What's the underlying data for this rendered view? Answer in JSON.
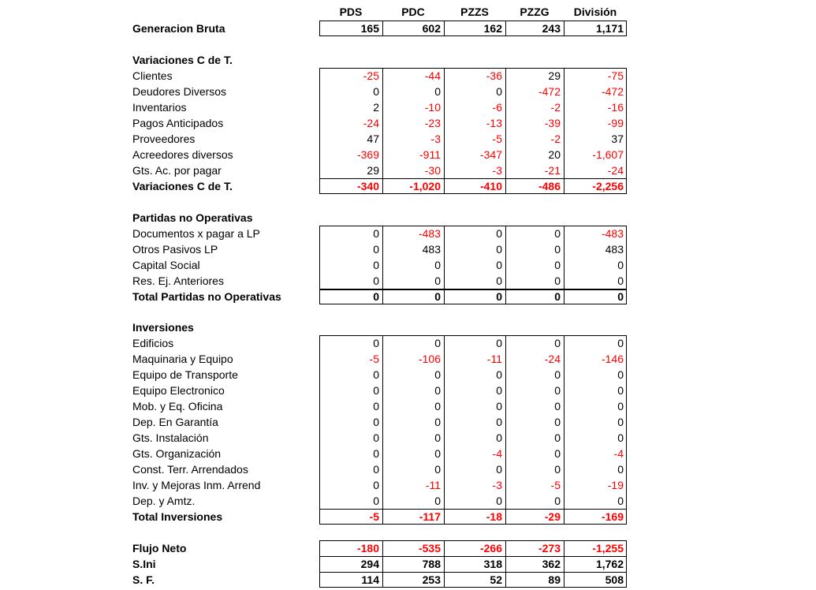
{
  "columns": [
    "PDS",
    "PDC",
    "PZZS",
    "PZZG",
    "División"
  ],
  "generacion": {
    "label": "Generacion Bruta",
    "values": [
      "165",
      "602",
      "162",
      "243",
      "1,171"
    ]
  },
  "variaciones": {
    "title": "Variaciones C de T.",
    "rows": [
      {
        "label": "Clientes",
        "values": [
          "-25",
          "-44",
          "-36",
          "29",
          "-75"
        ]
      },
      {
        "label": "Deudores Diversos",
        "values": [
          "0",
          "0",
          "0",
          "-472",
          "-472"
        ]
      },
      {
        "label": "Inventarios",
        "values": [
          "2",
          "-10",
          "-6",
          "-2",
          "-16"
        ]
      },
      {
        "label": "Pagos Anticipados",
        "values": [
          "-24",
          "-23",
          "-13",
          "-39",
          "-99"
        ]
      },
      {
        "label": "Proveedores",
        "values": [
          "47",
          "-3",
          "-5",
          "-2",
          "37"
        ]
      },
      {
        "label": "Acreedores diversos",
        "values": [
          "-369",
          "-911",
          "-347",
          "20",
          "-1,607"
        ]
      },
      {
        "label": "Gts. Ac. por pagar",
        "values": [
          "29",
          "-30",
          "-3",
          "-21",
          "-24"
        ]
      }
    ],
    "total": {
      "label": "Variaciones C de T.",
      "values": [
        "-340",
        "-1,020",
        "-410",
        "-486",
        "-2,256"
      ]
    }
  },
  "partidas": {
    "title": "Partidas no Operativas",
    "rows": [
      {
        "label": "Documentos x pagar a LP",
        "values": [
          "0",
          "-483",
          "0",
          "0",
          "-483"
        ]
      },
      {
        "label": "Otros Pasivos LP",
        "values": [
          "0",
          "483",
          "0",
          "0",
          "483"
        ]
      },
      {
        "label": "Capital Social",
        "values": [
          "0",
          "0",
          "0",
          "0",
          "0"
        ]
      },
      {
        "label": "Res. Ej. Anteriores",
        "values": [
          "0",
          "0",
          "0",
          "0",
          "0"
        ]
      }
    ],
    "total": {
      "label": "Total Partidas no Operativas",
      "values": [
        "0",
        "0",
        "0",
        "0",
        "0"
      ]
    }
  },
  "inversiones": {
    "title": "Inversiones",
    "rows": [
      {
        "label": "Edificios",
        "values": [
          "0",
          "0",
          "0",
          "0",
          "0"
        ]
      },
      {
        "label": "Maquinaria y Equipo",
        "values": [
          "-5",
          "-106",
          "-11",
          "-24",
          "-146"
        ]
      },
      {
        "label": "Equipo de Transporte",
        "values": [
          "0",
          "0",
          "0",
          "0",
          "0"
        ]
      },
      {
        "label": "Equipo Electronico",
        "values": [
          "0",
          "0",
          "0",
          "0",
          "0"
        ]
      },
      {
        "label": "Mob. y Eq. Oficina",
        "values": [
          "0",
          "0",
          "0",
          "0",
          "0"
        ]
      },
      {
        "label": "Dep. En Garantía",
        "values": [
          "0",
          "0",
          "0",
          "0",
          "0"
        ]
      },
      {
        "label": "Gts. Instalación",
        "values": [
          "0",
          "0",
          "0",
          "0",
          "0"
        ]
      },
      {
        "label": "Gts. Organización",
        "values": [
          "0",
          "0",
          "-4",
          "0",
          "-4"
        ]
      },
      {
        "label": "Const. Terr. Arrendados",
        "values": [
          "0",
          "0",
          "0",
          "0",
          "0"
        ]
      },
      {
        "label": "Inv. y Mejoras Inm. Arrend",
        "values": [
          "0",
          "-11",
          "-3",
          "-5",
          "-19"
        ]
      },
      {
        "label": "Dep. y Amtz.",
        "values": [
          "0",
          "0",
          "0",
          "0",
          "0"
        ]
      }
    ],
    "total": {
      "label": "Total Inversiones",
      "values": [
        "-5",
        "-117",
        "-18",
        "-29",
        "-169"
      ]
    }
  },
  "flujo": {
    "label": "Flujo Neto",
    "values": [
      "-180",
      "-535",
      "-266",
      "-273",
      "-1,255"
    ]
  },
  "sini": {
    "label": "S.Ini",
    "values": [
      "294",
      "788",
      "318",
      "362",
      "1,762"
    ]
  },
  "sf": {
    "label": "S. F.",
    "values": [
      "114",
      "253",
      "52",
      "89",
      "508"
    ]
  }
}
